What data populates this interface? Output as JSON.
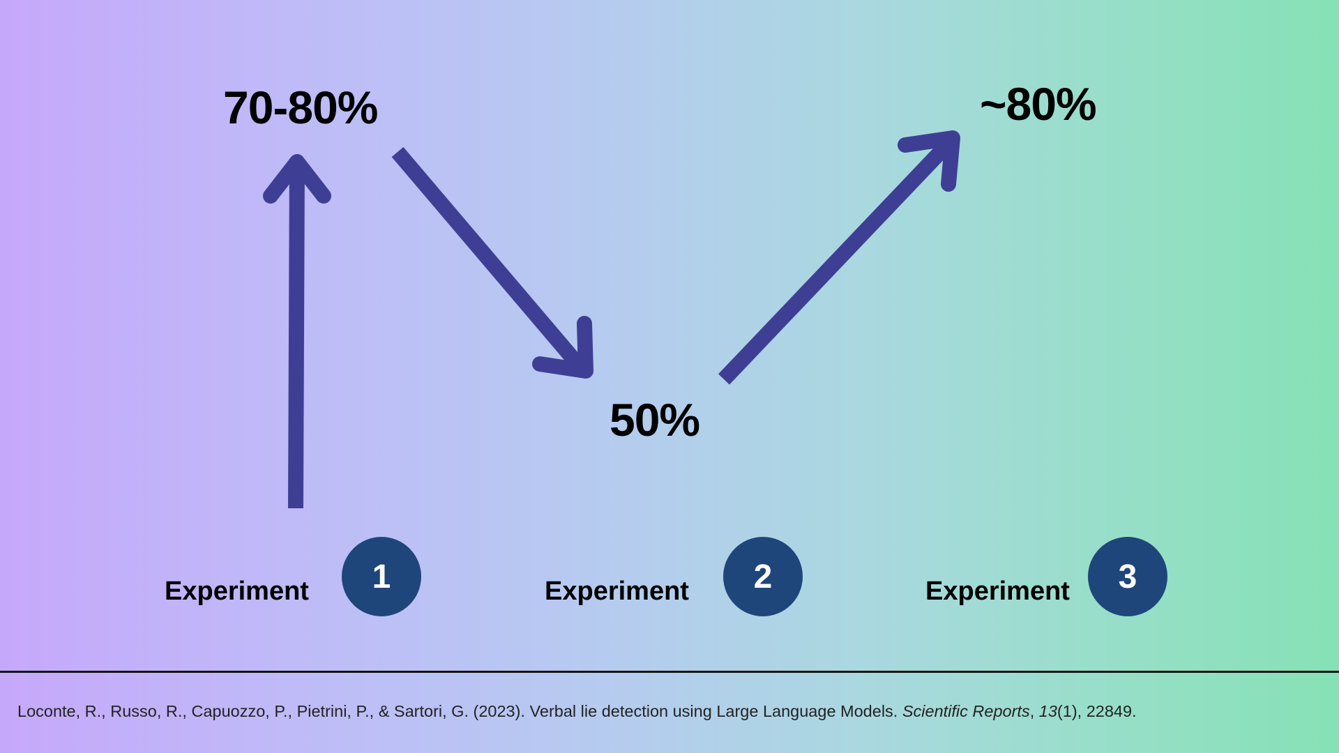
{
  "values": {
    "experiment_1": "70-80%",
    "experiment_2": "50%",
    "experiment_3": "~80%"
  },
  "experiments": [
    {
      "label": "Experiment",
      "number": "1"
    },
    {
      "label": "Experiment",
      "number": "2"
    },
    {
      "label": "Experiment",
      "number": "3"
    }
  ],
  "citation": {
    "authors_title": "Loconte, R., Russo, R., Capuozzo, P., Pietrini, P., & Sartori, G. (2023). Verbal lie detection using Large Language Models. ",
    "journal": "Scientific Reports",
    "sep": ", ",
    "volume": "13",
    "issue_pages": "(1), 22849."
  },
  "colors": {
    "arrow": "#3e3f94",
    "badge": "#1f467a",
    "gradient_start": "#c6a8fb",
    "gradient_end": "#86e1b5"
  },
  "icons": {
    "arrows": [
      "arrow-up-icon",
      "arrow-down-right-icon",
      "arrow-up-right-icon"
    ]
  }
}
